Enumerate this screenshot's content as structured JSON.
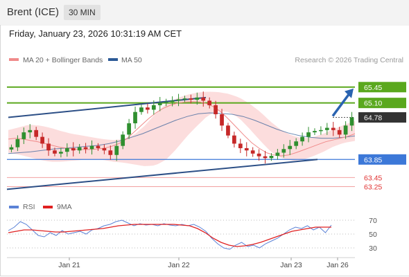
{
  "header": {
    "instrument": "Brent (ICE)",
    "timeframe": "30 MIN"
  },
  "timestamp": "Friday, January 23, 2026 10:31:19 AM CET",
  "legend": {
    "ma20_label": "MA 20 + Bollinger Bands",
    "ma20_color": "#f08a8a",
    "ma50_label": "MA 50",
    "ma50_color": "#2c5a96",
    "copyright": "Research © 2026 Trading Central"
  },
  "levels": [
    {
      "label": "65.45",
      "kind": "resistance",
      "color": "#5aa81d"
    },
    {
      "label": "65.10",
      "kind": "resistance",
      "color": "#5aa81d"
    },
    {
      "label": "64.78",
      "kind": "last",
      "color": "#333333"
    },
    {
      "label": "63.85",
      "kind": "pivot",
      "color": "#3c78d8"
    },
    {
      "label": "63.45",
      "kind": "support",
      "color": "#e03030"
    },
    {
      "label": "63.25",
      "kind": "support",
      "color": "#e03030"
    }
  ],
  "rsi_legend": {
    "rsi_label": "RSI",
    "rsi_color": "#5b82d6",
    "ma_label": "9MA",
    "ma_color": "#e02020"
  },
  "chart_data": [
    {
      "type": "candlestick",
      "x_labels": [
        "Jan 21",
        "Jan 22",
        "Jan 23",
        "Jan 26"
      ],
      "ylim": [
        63.15,
        65.6
      ],
      "price_path": [
        64.12,
        64.3,
        64.45,
        64.5,
        64.35,
        64.2,
        64.05,
        63.98,
        64.02,
        64.1,
        64.05,
        64.12,
        64.08,
        64.15,
        64.1,
        64.05,
        63.95,
        64.15,
        64.4,
        64.65,
        64.9,
        65.0,
        64.95,
        65.05,
        65.1,
        65.12,
        65.15,
        65.18,
        65.2,
        65.17,
        65.22,
        65.15,
        65.05,
        64.85,
        64.6,
        64.38,
        64.2,
        64.1,
        64.05,
        63.98,
        63.92,
        63.88,
        63.93,
        64.0,
        64.08,
        64.15,
        64.25,
        64.35,
        64.45,
        64.48,
        64.5,
        64.55,
        64.5,
        64.4,
        64.6,
        64.78
      ],
      "ma20_path": [
        64.3,
        64.32,
        64.3,
        64.27,
        64.24,
        64.2,
        64.16,
        64.12,
        64.1,
        64.08,
        64.07,
        64.07,
        64.08,
        64.1,
        64.14,
        64.2,
        64.3,
        64.45,
        64.6,
        64.75,
        64.88,
        64.98,
        65.05,
        65.1,
        65.12,
        65.13,
        65.12,
        65.08,
        65.0,
        64.88,
        64.72,
        64.55,
        64.38,
        64.22,
        64.1,
        64.0,
        63.95,
        63.93,
        63.95,
        64.0,
        64.06,
        64.12,
        64.18,
        64.24,
        64.28,
        64.32,
        64.36,
        64.42
      ],
      "ma50_path": [
        63.98,
        64.0,
        64.02,
        64.05,
        64.08,
        64.1,
        64.12,
        64.14,
        64.16,
        64.2,
        64.26,
        64.34,
        64.42,
        64.52,
        64.62,
        64.72,
        64.8,
        64.86,
        64.88,
        64.87,
        64.85,
        64.8,
        64.72,
        64.62,
        64.52,
        64.44,
        64.38,
        64.34,
        64.32,
        64.32,
        64.34,
        64.37
      ],
      "bb_upper_path": [
        64.5,
        64.56,
        64.62,
        64.6,
        64.55,
        64.48,
        64.42,
        64.38,
        64.34,
        64.3,
        64.28,
        64.3,
        64.4,
        64.6,
        64.86,
        65.08,
        65.2,
        65.28,
        65.33,
        65.35,
        65.34,
        65.3,
        65.22,
        65.08,
        64.9,
        64.68,
        64.5,
        64.38,
        64.32,
        64.34,
        64.42,
        64.52,
        64.62,
        64.7
      ],
      "bb_lower_path": [
        64.0,
        63.96,
        63.9,
        63.84,
        63.8,
        63.8,
        63.82,
        63.84,
        63.86,
        63.84,
        63.8,
        63.78,
        63.74,
        63.7,
        63.72,
        63.84,
        64.08,
        64.36,
        64.6,
        64.82,
        64.92,
        64.9,
        64.76,
        64.52,
        64.26,
        64.02,
        63.88,
        63.82,
        63.84,
        63.92,
        64.02,
        64.14,
        64.22,
        64.26
      ]
    },
    {
      "type": "line",
      "name": "RSI",
      "yticks": [
        70,
        50,
        30
      ],
      "ylim": [
        22,
        76
      ],
      "rsi_path": [
        55,
        60,
        68,
        64,
        56,
        48,
        46,
        52,
        48,
        55,
        50,
        52,
        54,
        50,
        56,
        58,
        62,
        64,
        68,
        70,
        66,
        62,
        65,
        63,
        64,
        62,
        65,
        63,
        62,
        64,
        62,
        64,
        60,
        54,
        44,
        36,
        30,
        28,
        34,
        38,
        32,
        34,
        30,
        36,
        40,
        44,
        50,
        56,
        60,
        58,
        62,
        56,
        60,
        52,
        63
      ],
      "ma_path": [
        52,
        54,
        56,
        56,
        55,
        54,
        53,
        53,
        54,
        55,
        56,
        57,
        58,
        60,
        62,
        63,
        64,
        64,
        64,
        64,
        64,
        64,
        63,
        62,
        58,
        52,
        44,
        38,
        34,
        32,
        33,
        35,
        38,
        42,
        46,
        50,
        54,
        56,
        58,
        60,
        60,
        60
      ]
    }
  ]
}
